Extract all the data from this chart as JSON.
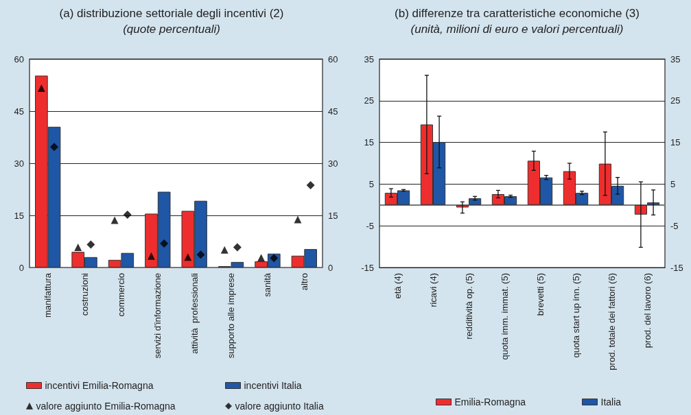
{
  "chart_data": [
    {
      "type": "bar",
      "title": "(a) distribuzione settoriale degli incentivi (2)",
      "subtitle": "(quote percentuali)",
      "categories": [
        "manifattura",
        "costruzioni",
        "commercio",
        "servizi d'informazione",
        "attività  professionali",
        "supporto alle imprese",
        "sanità",
        "altro"
      ],
      "series": [
        {
          "name": "incentivi Emilia-Romagna",
          "color": "#ee2e2e",
          "values": [
            55.2,
            4.5,
            2.2,
            15.5,
            16.3,
            0.4,
            1.8,
            3.4
          ]
        },
        {
          "name": "incentivi Italia",
          "color": "#1f56a5",
          "values": [
            40.5,
            3.0,
            4.2,
            21.8,
            19.2,
            1.6,
            4.0,
            5.3
          ]
        },
        {
          "name": "valore aggiunto Emilia-Romagna",
          "type": "scatter",
          "marker": "triangle",
          "color": "#000000",
          "values": [
            51.6,
            5.8,
            13.6,
            3.3,
            3.0,
            5.1,
            2.8,
            13.8
          ]
        },
        {
          "name": "valore aggiunto Italia",
          "type": "scatter",
          "marker": "diamond",
          "color": "#000000",
          "values": [
            34.7,
            6.6,
            15.2,
            6.9,
            3.7,
            5.8,
            2.7,
            23.7
          ]
        }
      ],
      "ylim": [
        0,
        60
      ],
      "yticks": [
        0,
        15,
        30,
        45,
        60
      ],
      "y2lim": [
        0,
        60
      ],
      "y2ticks": [
        0,
        15,
        30,
        45,
        60
      ],
      "grid": "y",
      "legend": "bottom"
    },
    {
      "type": "bar",
      "title": "(b) differenze tra caratteristiche economiche (3)",
      "subtitle": "(unità, milioni di euro e valori percentuali)",
      "categories": [
        "età (4)",
        "ricavi (4)",
        "redditività op. (5)",
        "quota imm. immat. (5)",
        "brevetti (5)",
        "quota start up inn. (5)",
        "prod. totale dei fattori (6)",
        "prod. del lavoro (6)"
      ],
      "series": [
        {
          "name": "Emilia-Romagna",
          "color": "#ee2e2e",
          "values": [
            2.9,
            19.3,
            -0.6,
            2.6,
            10.6,
            8.1,
            9.9,
            -2.3
          ],
          "errors": [
            1.0,
            11.8,
            1.35,
            0.9,
            2.3,
            1.9,
            7.6,
            7.85
          ]
        },
        {
          "name": "Italia",
          "color": "#1f56a5",
          "values": [
            3.5,
            15.1,
            1.6,
            2.1,
            6.6,
            2.9,
            4.6,
            0.6
          ],
          "errors": [
            0.2,
            6.2,
            0.45,
            0.25,
            0.5,
            0.4,
            2.0,
            3.0
          ]
        }
      ],
      "ylim": [
        -15,
        35
      ],
      "yticks": [
        -15,
        -5,
        5,
        15,
        25,
        35
      ],
      "y2lim": [
        -15,
        35
      ],
      "y2ticks": [
        -15,
        -5,
        5,
        15,
        25,
        35
      ],
      "grid": "y",
      "legend": "bottom"
    }
  ]
}
